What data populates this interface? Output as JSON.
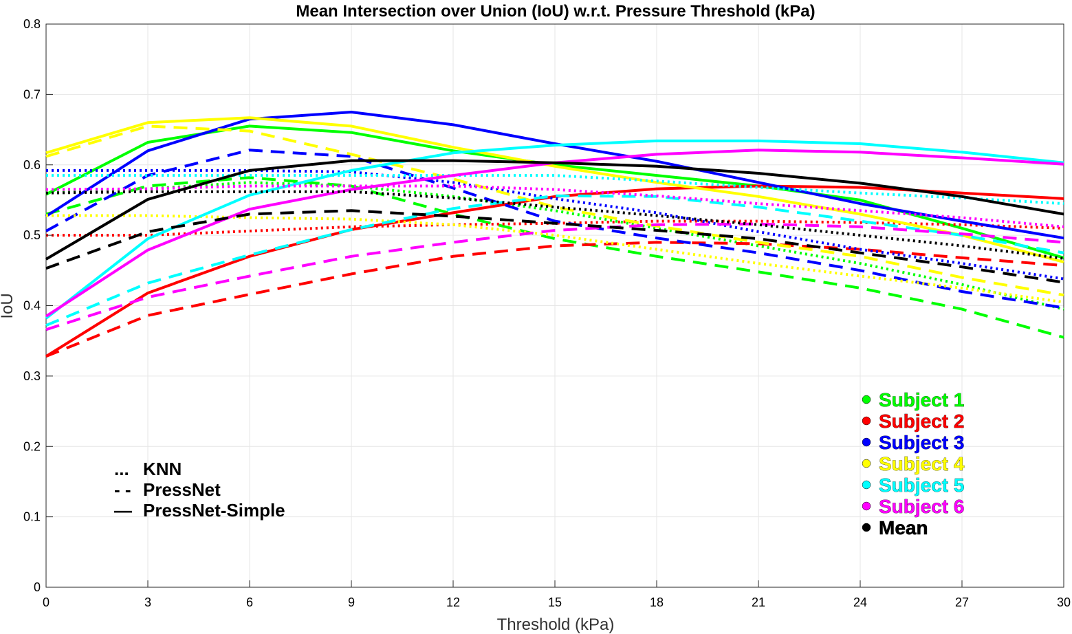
{
  "chart_data": {
    "type": "line",
    "title": "Mean Intersection over Union (IoU) w.r.t. Pressure Threshold (kPa)",
    "xlabel": "Threshold (kPa)",
    "ylabel": "IoU",
    "xlim": [
      0,
      30
    ],
    "ylim": [
      0,
      0.8
    ],
    "x_ticks": [
      "0",
      "3",
      "6",
      "9",
      "12",
      "15",
      "18",
      "21",
      "24",
      "27",
      "30"
    ],
    "y_ticks": [
      "0",
      "0.1",
      "0.2",
      "0.3",
      "0.4",
      "0.5",
      "0.6",
      "0.7",
      "0.8"
    ],
    "grid": true,
    "x": [
      0,
      3,
      6,
      9,
      12,
      15,
      18,
      21,
      24,
      27,
      30
    ],
    "legend": {
      "placement": "bottom-right",
      "entries": [
        {
          "label": "Subject 1",
          "color": "#00ff00"
        },
        {
          "label": "Subject 2",
          "color": "#ff0000"
        },
        {
          "label": "Subject 3",
          "color": "#0000ff"
        },
        {
          "label": "Subject 4",
          "color": "#ffff00"
        },
        {
          "label": "Subject 5",
          "color": "#00ffff"
        },
        {
          "label": "Subject 6",
          "color": "#ff00ff"
        },
        {
          "label": "Mean",
          "color": "#000000"
        }
      ]
    },
    "style_key": {
      "placement": "bottom-left",
      "entries": [
        {
          "marker": "...",
          "label": "KNN"
        },
        {
          "marker": "- -",
          "label": "PressNet"
        },
        {
          "marker": "—",
          "label": "PressNet-Simple"
        }
      ]
    },
    "series": [
      {
        "subject": "Subject 1",
        "method": "KNN",
        "color": "#00ff00",
        "dash": "dotted",
        "values": [
          0.56,
          0.566,
          0.575,
          0.57,
          0.555,
          0.535,
          0.51,
          0.485,
          0.46,
          0.43,
          0.395
        ]
      },
      {
        "subject": "Subject 1",
        "method": "PressNet",
        "color": "#00ff00",
        "dash": "dashed",
        "values": [
          0.53,
          0.57,
          0.582,
          0.57,
          0.53,
          0.495,
          0.47,
          0.448,
          0.425,
          0.395,
          0.355
        ]
      },
      {
        "subject": "Subject 1",
        "method": "PressNet-Simple",
        "color": "#00ff00",
        "dash": "solid",
        "values": [
          0.558,
          0.632,
          0.655,
          0.646,
          0.62,
          0.6,
          0.585,
          0.57,
          0.55,
          0.51,
          0.468
        ]
      },
      {
        "subject": "Subject 2",
        "method": "KNN",
        "color": "#ff0000",
        "dash": "dotted",
        "values": [
          0.5,
          0.5,
          0.506,
          0.512,
          0.515,
          0.517,
          0.52,
          0.52,
          0.518,
          0.515,
          0.51
        ]
      },
      {
        "subject": "Subject 2",
        "method": "PressNet",
        "color": "#ff0000",
        "dash": "dashed",
        "values": [
          0.328,
          0.386,
          0.416,
          0.445,
          0.47,
          0.485,
          0.49,
          0.488,
          0.48,
          0.468,
          0.457
        ]
      },
      {
        "subject": "Subject 2",
        "method": "PressNet-Simple",
        "color": "#ff0000",
        "dash": "solid",
        "values": [
          0.328,
          0.418,
          0.47,
          0.508,
          0.532,
          0.555,
          0.566,
          0.57,
          0.568,
          0.56,
          0.552
        ]
      },
      {
        "subject": "Subject 3",
        "method": "KNN",
        "color": "#0000ff",
        "dash": "dotted",
        "values": [
          0.592,
          0.592,
          0.592,
          0.59,
          0.575,
          0.552,
          0.532,
          0.505,
          0.48,
          0.46,
          0.438
        ]
      },
      {
        "subject": "Subject 3",
        "method": "PressNet",
        "color": "#0000ff",
        "dash": "dashed",
        "values": [
          0.506,
          0.585,
          0.621,
          0.612,
          0.567,
          0.52,
          0.496,
          0.475,
          0.45,
          0.42,
          0.397
        ]
      },
      {
        "subject": "Subject 3",
        "method": "PressNet-Simple",
        "color": "#0000ff",
        "dash": "solid",
        "values": [
          0.527,
          0.62,
          0.665,
          0.675,
          0.657,
          0.63,
          0.605,
          0.575,
          0.545,
          0.52,
          0.496
        ]
      },
      {
        "subject": "Subject 4",
        "method": "KNN",
        "color": "#ffff00",
        "dash": "dotted",
        "values": [
          0.528,
          0.528,
          0.525,
          0.523,
          0.515,
          0.5,
          0.48,
          0.46,
          0.442,
          0.425,
          0.405
        ]
      },
      {
        "subject": "Subject 4",
        "method": "PressNet",
        "color": "#ffff00",
        "dash": "dashed",
        "values": [
          0.612,
          0.655,
          0.648,
          0.615,
          0.58,
          0.54,
          0.513,
          0.49,
          0.47,
          0.44,
          0.415
        ]
      },
      {
        "subject": "Subject 4",
        "method": "PressNet-Simple",
        "color": "#ffff00",
        "dash": "solid",
        "values": [
          0.617,
          0.66,
          0.667,
          0.655,
          0.625,
          0.598,
          0.575,
          0.555,
          0.53,
          0.5,
          0.462
        ]
      },
      {
        "subject": "Subject 5",
        "method": "KNN",
        "color": "#00ffff",
        "dash": "dotted",
        "values": [
          0.585,
          0.585,
          0.585,
          0.585,
          0.585,
          0.585,
          0.577,
          0.568,
          0.56,
          0.553,
          0.545
        ]
      },
      {
        "subject": "Subject 5",
        "method": "PressNet",
        "color": "#00ffff",
        "dash": "dashed",
        "values": [
          0.372,
          0.432,
          0.472,
          0.508,
          0.538,
          0.556,
          0.555,
          0.54,
          0.52,
          0.5,
          0.475
        ]
      },
      {
        "subject": "Subject 5",
        "method": "PressNet-Simple",
        "color": "#00ffff",
        "dash": "solid",
        "values": [
          0.382,
          0.495,
          0.557,
          0.592,
          0.617,
          0.628,
          0.634,
          0.634,
          0.63,
          0.618,
          0.603
        ]
      },
      {
        "subject": "Subject 6",
        "method": "KNN",
        "color": "#ff00ff",
        "dash": "dotted",
        "values": [
          0.565,
          0.566,
          0.57,
          0.57,
          0.57,
          0.565,
          0.556,
          0.545,
          0.535,
          0.525,
          0.512
        ]
      },
      {
        "subject": "Subject 6",
        "method": "PressNet",
        "color": "#ff00ff",
        "dash": "dashed",
        "values": [
          0.366,
          0.412,
          0.442,
          0.47,
          0.49,
          0.507,
          0.515,
          0.516,
          0.512,
          0.502,
          0.49
        ]
      },
      {
        "subject": "Subject 6",
        "method": "PressNet-Simple",
        "color": "#ff00ff",
        "dash": "solid",
        "values": [
          0.385,
          0.479,
          0.537,
          0.565,
          0.585,
          0.603,
          0.615,
          0.621,
          0.618,
          0.61,
          0.601
        ]
      },
      {
        "subject": "Mean",
        "method": "KNN",
        "color": "#000000",
        "dash": "dotted",
        "values": [
          0.56,
          0.562,
          0.562,
          0.562,
          0.553,
          0.54,
          0.528,
          0.515,
          0.5,
          0.485,
          0.467
        ]
      },
      {
        "subject": "Mean",
        "method": "PressNet",
        "color": "#000000",
        "dash": "dashed",
        "values": [
          0.453,
          0.505,
          0.53,
          0.535,
          0.527,
          0.517,
          0.507,
          0.495,
          0.475,
          0.455,
          0.433
        ]
      },
      {
        "subject": "Mean",
        "method": "PressNet-Simple",
        "color": "#000000",
        "dash": "solid",
        "values": [
          0.466,
          0.551,
          0.592,
          0.606,
          0.606,
          0.603,
          0.598,
          0.588,
          0.574,
          0.555,
          0.53
        ]
      }
    ]
  }
}
